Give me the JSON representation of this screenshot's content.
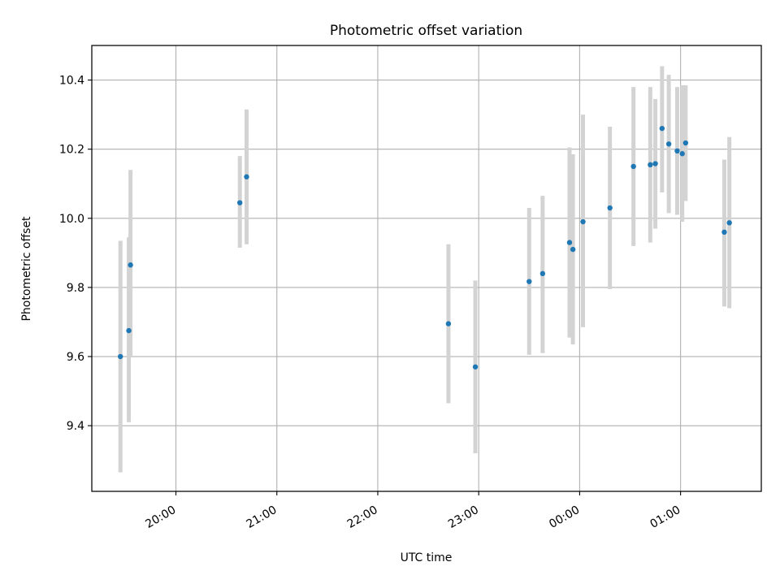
{
  "chart_data": {
    "type": "scatter",
    "title": "Photometric offset variation",
    "xlabel": "UTC time",
    "ylabel": "Photometric offset",
    "x_axis": {
      "kind": "time",
      "range": [
        "19:10",
        "01:48"
      ],
      "ticks": [
        {
          "time": "20:00",
          "label": "20:00"
        },
        {
          "time": "21:00",
          "label": "21:00"
        },
        {
          "time": "22:00",
          "label": "22:00"
        },
        {
          "time": "23:00",
          "label": "23:00"
        },
        {
          "time": "00:00",
          "label": "00:00"
        },
        {
          "time": "01:00",
          "label": "01:00"
        }
      ]
    },
    "y_axis": {
      "range": [
        9.21,
        10.5
      ],
      "ticks": [
        9.4,
        9.6,
        9.8,
        10.0,
        10.2,
        10.4
      ],
      "tick_labels": [
        "9.4",
        "9.6",
        "9.8",
        "10.0",
        "10.2",
        "10.4"
      ]
    },
    "grid": true,
    "colors": {
      "point": "#1f77b4",
      "errorbar": "#d3d3d3",
      "grid": "#b0b0b0"
    },
    "points": [
      {
        "time": "19:27",
        "y": 9.6,
        "ylow": 9.265,
        "yhigh": 9.935
      },
      {
        "time": "19:32",
        "y": 9.675,
        "ylow": 9.41,
        "yhigh": 9.945
      },
      {
        "time": "19:33",
        "y": 9.865,
        "ylow": 9.6,
        "yhigh": 10.14
      },
      {
        "time": "20:38",
        "y": 10.045,
        "ylow": 9.915,
        "yhigh": 10.18
      },
      {
        "time": "20:42",
        "y": 10.12,
        "ylow": 9.925,
        "yhigh": 10.315
      },
      {
        "time": "22:42",
        "y": 9.695,
        "ylow": 9.465,
        "yhigh": 9.925
      },
      {
        "time": "22:58",
        "y": 9.57,
        "ylow": 9.32,
        "yhigh": 9.82
      },
      {
        "time": "23:30",
        "y": 9.817,
        "ylow": 9.605,
        "yhigh": 10.03
      },
      {
        "time": "23:38",
        "y": 9.84,
        "ylow": 9.61,
        "yhigh": 10.065
      },
      {
        "time": "23:54",
        "y": 9.93,
        "ylow": 9.655,
        "yhigh": 10.205
      },
      {
        "time": "23:56",
        "y": 9.91,
        "ylow": 9.635,
        "yhigh": 10.185
      },
      {
        "time": "00:02",
        "y": 9.99,
        "ylow": 9.685,
        "yhigh": 10.3
      },
      {
        "time": "00:18",
        "y": 10.03,
        "ylow": 9.795,
        "yhigh": 10.265
      },
      {
        "time": "00:32",
        "y": 10.15,
        "ylow": 9.92,
        "yhigh": 10.38
      },
      {
        "time": "00:42",
        "y": 10.155,
        "ylow": 9.93,
        "yhigh": 10.38
      },
      {
        "time": "00:45",
        "y": 10.158,
        "ylow": 9.97,
        "yhigh": 10.345
      },
      {
        "time": "00:49",
        "y": 10.26,
        "ylow": 10.075,
        "yhigh": 10.44
      },
      {
        "time": "00:53",
        "y": 10.215,
        "ylow": 10.015,
        "yhigh": 10.415
      },
      {
        "time": "00:58",
        "y": 10.195,
        "ylow": 10.01,
        "yhigh": 10.38
      },
      {
        "time": "01:01",
        "y": 10.187,
        "ylow": 9.99,
        "yhigh": 10.385
      },
      {
        "time": "01:03",
        "y": 10.218,
        "ylow": 10.05,
        "yhigh": 10.385
      },
      {
        "time": "01:26",
        "y": 9.96,
        "ylow": 9.745,
        "yhigh": 10.17
      },
      {
        "time": "01:29",
        "y": 9.987,
        "ylow": 9.74,
        "yhigh": 10.235
      }
    ]
  }
}
